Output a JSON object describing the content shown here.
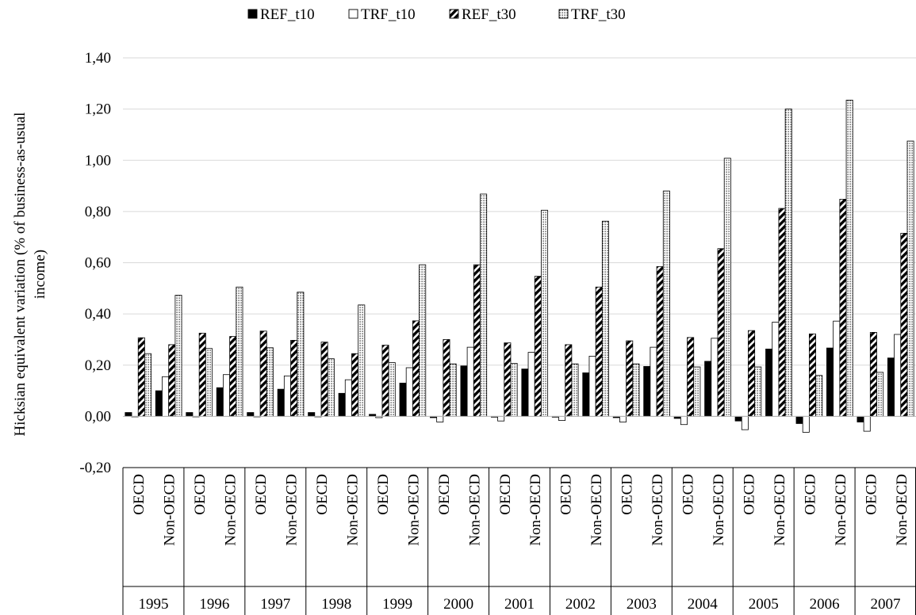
{
  "chart_data": {
    "type": "bar",
    "title": "",
    "ylabel": "Hicksian equivalent variation  (% of business-as-usual income)",
    "ylabel_lines": [
      "Hicksian equivalent variation  (% of business-as-usual",
      "income)"
    ],
    "xlabel": "",
    "ylim": [
      -0.2,
      1.4
    ],
    "yticks": [
      -0.2,
      0.0,
      0.2,
      0.4,
      0.6,
      0.8,
      1.0,
      1.2,
      1.4
    ],
    "ytick_labels": [
      "-0,20",
      "0,00",
      "0,20",
      "0,40",
      "0,60",
      "0,80",
      "1,00",
      "1,20",
      "1,40"
    ],
    "grid": true,
    "legend_position": "top-center",
    "groups": [
      "1995",
      "1996",
      "1997",
      "1998",
      "1999",
      "2000",
      "2001",
      "2002",
      "2003",
      "2004",
      "2005",
      "2006",
      "2007"
    ],
    "subcategories": [
      "OECD",
      "Non-OECD"
    ],
    "series": [
      {
        "name": "REF_t10",
        "pattern": "solid",
        "values": [
          0.015,
          0.1,
          0.015,
          0.112,
          0.015,
          0.106,
          0.015,
          0.09,
          0.008,
          0.13,
          -0.005,
          0.197,
          -0.003,
          0.185,
          -0.003,
          0.17,
          -0.005,
          0.195,
          -0.008,
          0.215,
          -0.018,
          0.263,
          -0.028,
          0.267,
          -0.022,
          0.228
        ]
      },
      {
        "name": "TRF_t10",
        "pattern": "hollow",
        "values": [
          0.0,
          0.155,
          0.0,
          0.163,
          0.0,
          0.158,
          0.0,
          0.143,
          -0.005,
          0.19,
          -0.022,
          0.27,
          -0.018,
          0.25,
          -0.016,
          0.235,
          -0.022,
          0.27,
          -0.032,
          0.305,
          -0.052,
          0.368,
          -0.062,
          0.372,
          -0.058,
          0.32
        ]
      },
      {
        "name": "REF_t30",
        "pattern": "diagonal",
        "values": [
          0.307,
          0.28,
          0.325,
          0.312,
          0.333,
          0.297,
          0.29,
          0.245,
          0.278,
          0.373,
          0.3,
          0.592,
          0.287,
          0.547,
          0.28,
          0.505,
          0.295,
          0.585,
          0.308,
          0.655,
          0.335,
          0.812,
          0.322,
          0.848,
          0.328,
          0.715
        ]
      },
      {
        "name": "TRF_t30",
        "pattern": "dotted",
        "values": [
          0.245,
          0.473,
          0.265,
          0.505,
          0.268,
          0.485,
          0.225,
          0.435,
          0.21,
          0.592,
          0.205,
          0.868,
          0.207,
          0.805,
          0.205,
          0.762,
          0.205,
          0.88,
          0.193,
          1.008,
          0.193,
          1.2,
          0.16,
          1.235,
          0.172,
          1.075
        ]
      }
    ]
  }
}
